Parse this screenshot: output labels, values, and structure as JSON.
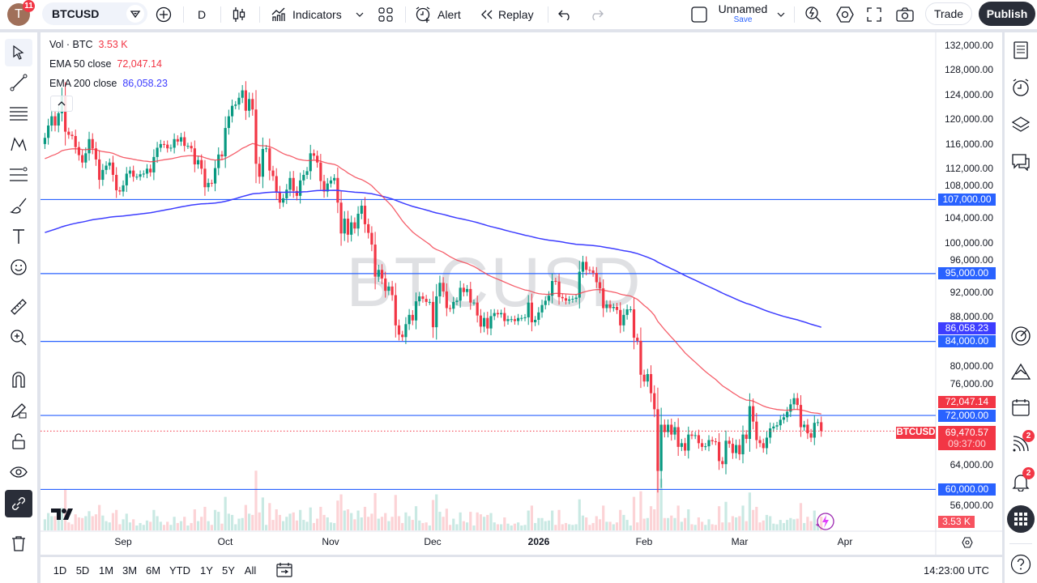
{
  "topbar": {
    "avatar_letter": "T",
    "avatar_badge": "11",
    "symbol": "BTCUSD",
    "interval": "D",
    "indicators_label": "Indicators",
    "alert_label": "Alert",
    "replay_label": "Replay",
    "layout_name": "Unnamed",
    "layout_save": "Save",
    "trade_label": "Trade",
    "publish_label": "Publish"
  },
  "legend": {
    "vol_label": "Vol · BTC",
    "vol_value": "3.53 K",
    "ema50_label": "EMA 50 close",
    "ema50_value": "72,047.14",
    "ema200_label": "EMA 200 close",
    "ema200_value": "86,058.23"
  },
  "watermark": "BTCUSD",
  "colors": {
    "up": "#089981",
    "down": "#f23645",
    "ema50": "#f23645",
    "ema200": "#3d3dff",
    "hline": "#2962ff",
    "accent": "#2962ff"
  },
  "price_axis": {
    "ticks": [
      "132,000.00",
      "128,000.00",
      "124,000.00",
      "120,000.00",
      "116,000.00",
      "112,000.00",
      "108,000.00",
      "104,000.00",
      "100,000.00",
      "96,000.00",
      "92,000.00",
      "88,000.00",
      "80,000.00",
      "76,000.00",
      "64,000.00",
      "56,000.00"
    ],
    "tick_values": [
      132000,
      128000,
      124000,
      120000,
      116000,
      112000,
      108000,
      104000,
      100000,
      96000,
      92000,
      88000,
      80000,
      76000,
      64000,
      56000
    ],
    "horizontal_lines": [
      {
        "value": 107000,
        "label": "107,000.00"
      },
      {
        "value": 95000,
        "label": "95,000.00"
      },
      {
        "value": 84000,
        "label": "84,000.00"
      },
      {
        "value": 72000,
        "label": "72,000.00"
      },
      {
        "value": 60000,
        "label": "60,000.00"
      }
    ],
    "ema50_label": "72,047.14",
    "ema200_label": "86,058.23",
    "last_price": 69470.57,
    "last_price_label": "69,470.57",
    "countdown": "09:37:00",
    "symbol_tag": "BTCUSD",
    "volume_label": "3.53 K"
  },
  "time_axis": {
    "labels": [
      "Sep",
      "Oct",
      "Nov",
      "Dec",
      "2026",
      "Feb",
      "Mar",
      "Apr"
    ]
  },
  "candles": {
    "closes": [
      117000,
      119000,
      120500,
      119000,
      121000,
      123800,
      118000,
      117500,
      117300,
      115500,
      114200,
      113000,
      114500,
      116800,
      115300,
      113500,
      110200,
      111800,
      112500,
      113000,
      111000,
      108500,
      108300,
      109300,
      111200,
      111700,
      110700,
      110700,
      111100,
      111200,
      112000,
      111400,
      113900,
      115400,
      116000,
      115900,
      115300,
      115400,
      116800,
      116400,
      117100,
      115700,
      115700,
      115300,
      112700,
      113400,
      112000,
      109000,
      109700,
      109600,
      112100,
      114300,
      114000,
      118600,
      120500,
      122200,
      122400,
      123500,
      124700,
      121400,
      123300,
      121600,
      112800,
      110700,
      115200,
      115300,
      111700,
      110800,
      108200,
      106500,
      107200,
      108600,
      110500,
      108400,
      107600,
      110100,
      111000,
      111600,
      114500,
      114100,
      113000,
      110000,
      108300,
      109600,
      110100,
      110500,
      106500,
      101500,
      103900,
      101300,
      103300,
      102300,
      104700,
      106000,
      103000,
      101600,
      99700,
      94500,
      95600,
      94200,
      92200,
      92900,
      91500,
      86600,
      85100,
      84700,
      86800,
      88300,
      87400,
      90500,
      91300,
      90900,
      90400,
      90400,
      86300,
      91300,
      93500,
      92100,
      89400,
      89300,
      90400,
      90600,
      92700,
      92000,
      92500,
      90300,
      90300,
      88200,
      86400,
      87800,
      86100,
      88100,
      88600,
      88400,
      88600,
      87300,
      87600,
      87600,
      87300,
      87800,
      87800,
      87900,
      90300,
      87100,
      87500,
      88700,
      89900,
      90600,
      91400,
      93800,
      93700,
      91200,
      91000,
      90600,
      90800,
      90900,
      91100,
      95300,
      96900,
      95600,
      95500,
      95100,
      93600,
      92600,
      89400,
      90000,
      89400,
      89600,
      89100,
      86600,
      88300,
      89200,
      89200,
      84600,
      84100,
      78600,
      77500,
      78700,
      75600,
      73000,
      63000,
      70500,
      69300,
      70500,
      68900,
      70100,
      66900,
      67500,
      66300,
      68900,
      68700,
      68800,
      67500,
      66900,
      67000,
      68000,
      67800,
      67700,
      64600,
      64100,
      67900,
      67400,
      65900,
      67200,
      65700,
      68900,
      68200,
      73500,
      71000,
      68000,
      67500,
      66700,
      68400,
      69900,
      70200,
      70400,
      71300,
      71700,
      72600,
      73800,
      74800,
      73700,
      70100,
      70500,
      69100,
      68400,
      70800,
      70900,
      69470
    ]
  },
  "range_buttons": [
    "1D",
    "5D",
    "1M",
    "3M",
    "6M",
    "YTD",
    "1Y",
    "5Y",
    "All"
  ],
  "clock": "14:23:00 UTC",
  "right_badges": {
    "news": "2",
    "alerts": "2"
  }
}
